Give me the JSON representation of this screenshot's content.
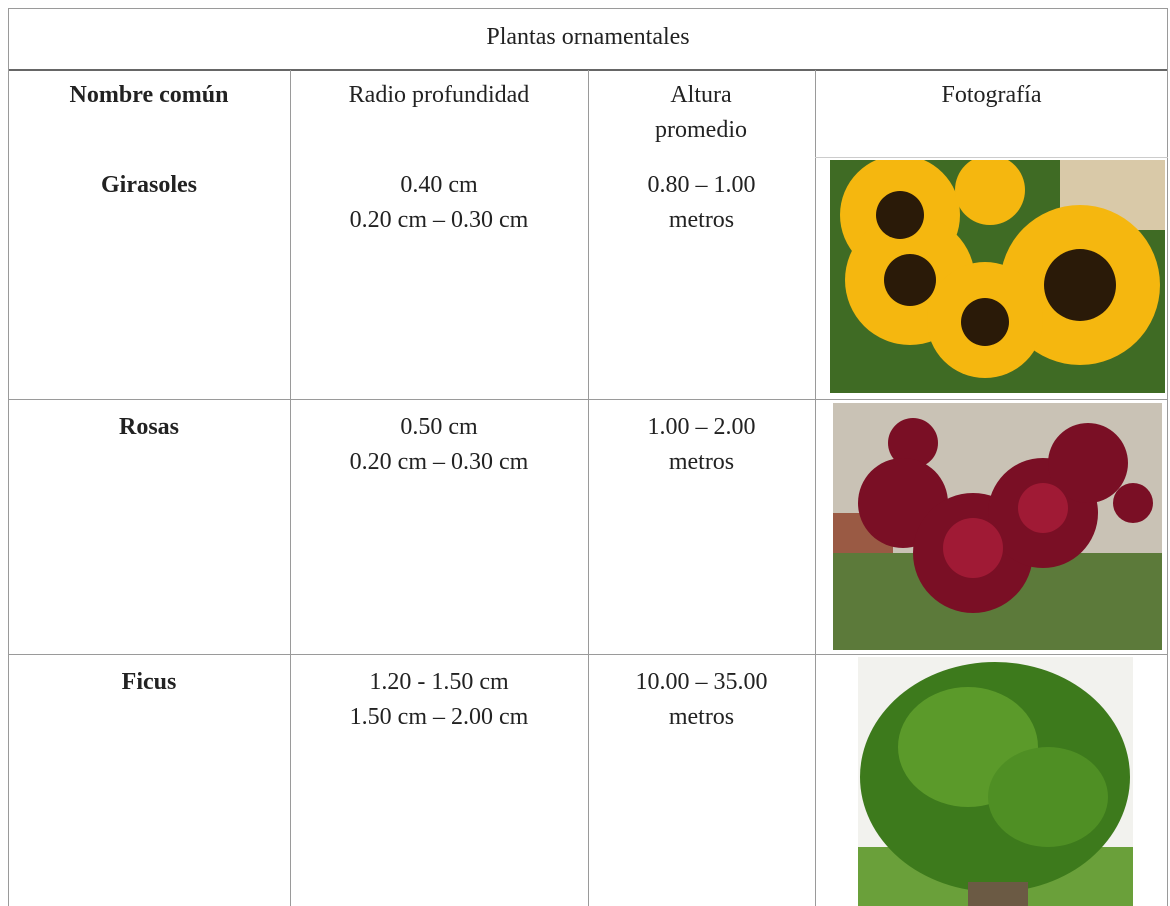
{
  "table": {
    "title": "Plantas ornamentales",
    "header": [
      "Nombre común",
      "Radio profundidad",
      "Altura promedio",
      "Fotografía"
    ],
    "rows": [
      {
        "name": "Girasoles",
        "radio": [
          "0.40 cm",
          "0.20 cm – 0.30 cm"
        ],
        "altura": [
          "0.80 – 1.00",
          "metros"
        ]
      },
      {
        "name": "Rosas",
        "radio": [
          "0.50 cm",
          "0.20 cm – 0.30 cm"
        ],
        "altura": [
          "1.00 – 2.00",
          "metros"
        ]
      },
      {
        "name": "Ficus",
        "radio": [
          "1.20 - 1.50 cm",
          "1.50 cm – 2.00 cm"
        ],
        "altura": [
          "10.00 – 35.00",
          "metros"
        ]
      }
    ]
  }
}
